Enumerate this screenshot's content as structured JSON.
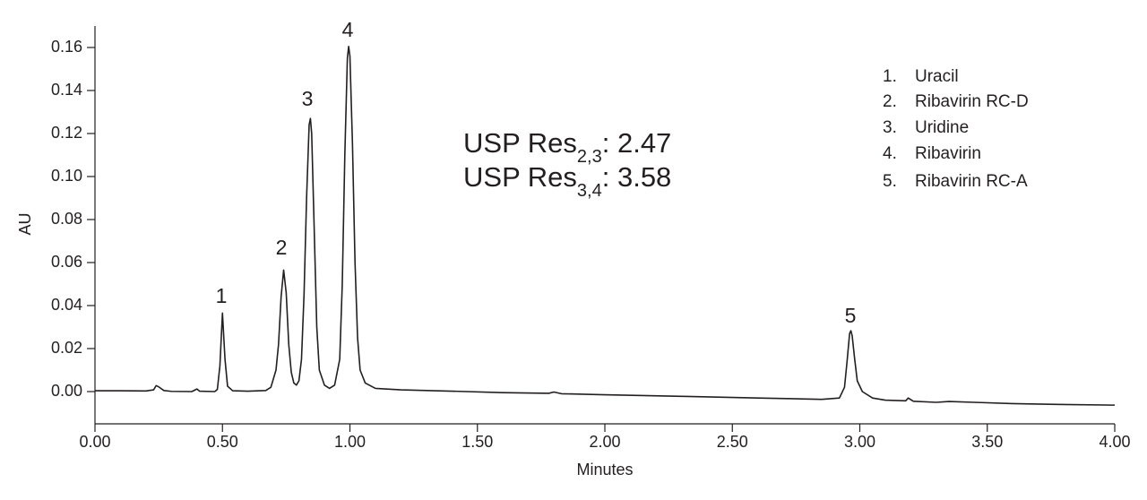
{
  "chart_data": {
    "type": "line",
    "x_label": "Minutes",
    "y_label": "AU",
    "color": "#231f20",
    "xlim": [
      0,
      4
    ],
    "ylim": [
      -0.015,
      0.17
    ],
    "xticks": [
      {
        "value": 0,
        "label": "0.00"
      },
      {
        "value": 0.5,
        "label": "0.50"
      },
      {
        "value": 1,
        "label": "1.00"
      },
      {
        "value": 1.5,
        "label": "1.50"
      },
      {
        "value": 2,
        "label": "2.00"
      },
      {
        "value": 2.5,
        "label": "2.50"
      },
      {
        "value": 3,
        "label": "3.00"
      },
      {
        "value": 3.5,
        "label": "3.50"
      },
      {
        "value": 4,
        "label": "4.00"
      }
    ],
    "yticks": [
      {
        "value": 0,
        "label": "0.00"
      },
      {
        "value": 0.02,
        "label": "0.02"
      },
      {
        "value": 0.04,
        "label": "0.04"
      },
      {
        "value": 0.06,
        "label": "0.06"
      },
      {
        "value": 0.08,
        "label": "0.08"
      },
      {
        "value": 0.1,
        "label": "0.10"
      },
      {
        "value": 0.12,
        "label": "0.12"
      },
      {
        "value": 0.14,
        "label": "0.14"
      },
      {
        "value": 0.16,
        "label": "0.16"
      }
    ],
    "grid": false,
    "x": [
      0.0,
      0.1,
      0.2,
      0.23,
      0.24,
      0.25,
      0.27,
      0.3,
      0.38,
      0.4,
      0.41,
      0.47,
      0.48,
      0.49,
      0.5,
      0.51,
      0.52,
      0.54,
      0.6,
      0.67,
      0.69,
      0.71,
      0.72,
      0.73,
      0.74,
      0.75,
      0.76,
      0.77,
      0.78,
      0.79,
      0.8,
      0.81,
      0.82,
      0.83,
      0.84,
      0.845,
      0.85,
      0.86,
      0.87,
      0.88,
      0.9,
      0.92,
      0.94,
      0.96,
      0.97,
      0.98,
      0.99,
      0.995,
      1.0,
      1.01,
      1.02,
      1.03,
      1.04,
      1.06,
      1.1,
      1.2,
      1.4,
      1.6,
      1.78,
      1.8,
      1.83,
      2.0,
      2.3,
      2.6,
      2.85,
      2.92,
      2.94,
      2.95,
      2.96,
      2.965,
      2.97,
      2.98,
      2.99,
      3.01,
      3.05,
      3.1,
      3.18,
      3.19,
      3.21,
      3.3,
      3.35,
      3.45,
      3.6,
      3.8,
      4.0
    ],
    "values": [
      0.0004,
      0.0004,
      0.0003,
      0.0008,
      0.0028,
      0.0022,
      0.0005,
      0.0001,
      0.0,
      0.0012,
      0.0002,
      0.0,
      0.001,
      0.012,
      0.0365,
      0.015,
      0.0025,
      0.0004,
      0.0002,
      0.0005,
      0.002,
      0.01,
      0.022,
      0.044,
      0.0565,
      0.046,
      0.022,
      0.009,
      0.004,
      0.003,
      0.005,
      0.015,
      0.045,
      0.09,
      0.124,
      0.127,
      0.12,
      0.075,
      0.03,
      0.01,
      0.003,
      0.0015,
      0.003,
      0.015,
      0.05,
      0.11,
      0.155,
      0.1605,
      0.156,
      0.115,
      0.06,
      0.025,
      0.01,
      0.004,
      0.0015,
      0.0008,
      0.0002,
      -0.0005,
      -0.0008,
      -0.0002,
      -0.001,
      -0.0015,
      -0.0022,
      -0.003,
      -0.0036,
      -0.003,
      0.002,
      0.014,
      0.027,
      0.0283,
      0.026,
      0.015,
      0.005,
      0.0,
      -0.003,
      -0.004,
      -0.0043,
      -0.003,
      -0.0045,
      -0.005,
      -0.0046,
      -0.005,
      -0.0056,
      -0.006,
      -0.0063
    ],
    "peak_labels": [
      "1",
      "2",
      "3",
      "4",
      "5"
    ],
    "legend": [
      {
        "number": "1.",
        "name": "Uracil"
      },
      {
        "number": "2.",
        "name": "Ribavirin RC-D"
      },
      {
        "number": "3.",
        "name": "Uridine"
      },
      {
        "number": "4.",
        "name": "Ribavirin"
      },
      {
        "number": "5.",
        "name": "Ribavirin RC-A"
      }
    ],
    "resolutions": [
      {
        "label": "USP Res",
        "subscript": "2,3",
        "text": ": 2.47"
      },
      {
        "label": "USP Res",
        "subscript": "3,4",
        "text": ": 3.58"
      }
    ]
  }
}
